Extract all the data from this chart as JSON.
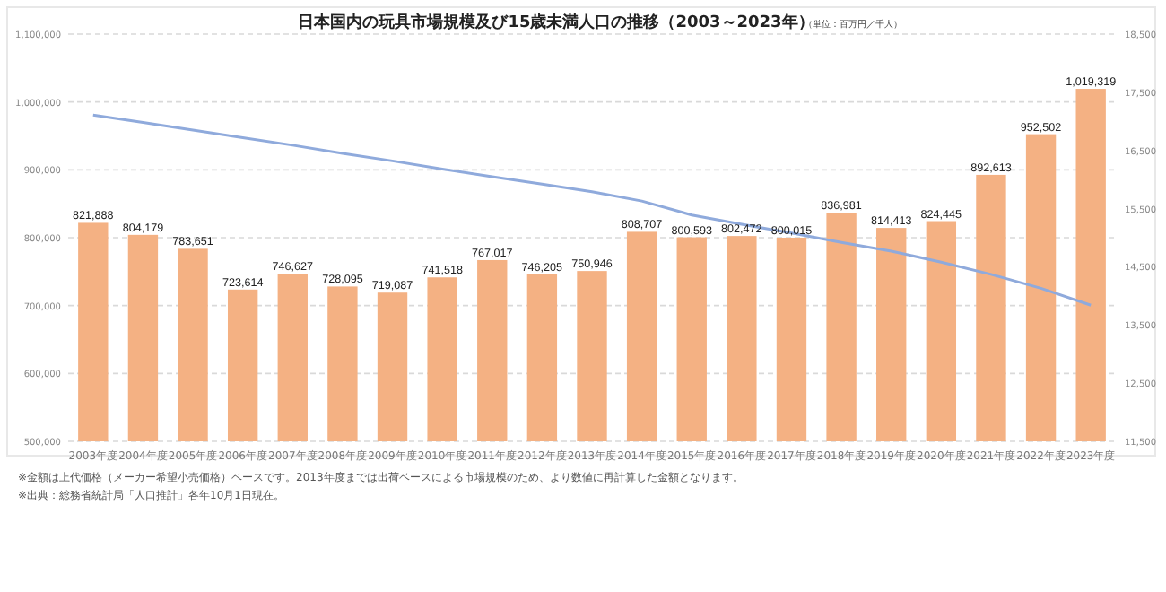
{
  "chart_data": {
    "type": "bar",
    "title": "日本国内の玩具市場規模及び15歳未満人口の推移（2003～2023年）",
    "subtitle": "（単位：百万円／千人）",
    "categories": [
      "2003年度",
      "2004年度",
      "2005年度",
      "2006年度",
      "2007年度",
      "2008年度",
      "2009年度",
      "2010年度",
      "2011年度",
      "2012年度",
      "2013年度",
      "2014年度",
      "2015年度",
      "2016年度",
      "2017年度",
      "2018年度",
      "2019年度",
      "2020年度",
      "2021年度",
      "2022年度",
      "2023年度"
    ],
    "series": [
      {
        "color": "#f4b183",
        "values": [
          821888,
          804179,
          783651,
          723614,
          746627,
          728095,
          719087,
          741518,
          767017,
          746205,
          750946,
          808707,
          800593,
          802472,
          800015,
          836981,
          814413,
          824445,
          892613,
          952502,
          1019319
        ],
        "value_labels": [
          "821,888",
          "804,179",
          "783,651",
          "723,614",
          "746,627",
          "728,095",
          "719,087",
          "741,518",
          "767,017",
          "746,205",
          "750,946",
          "808,707",
          "800,593",
          "802,472",
          "800,015",
          "836,981",
          "814,413",
          "824,445",
          "892,613",
          "952,502",
          "1,019,319"
        ]
      },
      {
        "type": "line",
        "axis": "y2",
        "color": "#8faadc",
        "values": [
          17110,
          16980,
          16850,
          16720,
          16590,
          16450,
          16320,
          16180,
          16050,
          15920,
          15790,
          15630,
          15390,
          15230,
          15080,
          14920,
          14770,
          14580,
          14370,
          14130,
          13840
        ]
      }
    ],
    "ylim": [
      500000,
      1100000
    ],
    "yticks": [
      {
        "value": 500000,
        "label": "500,000"
      },
      {
        "value": 600000,
        "label": "600,000"
      },
      {
        "value": 700000,
        "label": "700,000"
      },
      {
        "value": 800000,
        "label": "800,000"
      },
      {
        "value": 900000,
        "label": "900,000"
      },
      {
        "value": 1000000,
        "label": "1,000,000"
      },
      {
        "value": 1100000,
        "label": "1,100,000"
      }
    ],
    "y2lim": [
      11500,
      18500
    ],
    "y2ticks": [
      {
        "value": 11500,
        "label": "11,500"
      },
      {
        "value": 12500,
        "label": "12,500"
      },
      {
        "value": 13500,
        "label": "13,500"
      },
      {
        "value": 14500,
        "label": "14,500"
      },
      {
        "value": 15500,
        "label": "15,500"
      },
      {
        "value": 16500,
        "label": "16,500"
      },
      {
        "value": 17500,
        "label": "17,500"
      },
      {
        "value": 18500,
        "label": "18,500"
      }
    ],
    "grid": "y",
    "annotations": [
      "※金額は上代価格（メーカー希望小売価格）ベースです。2013年度までは出荷ベースによる市場規模のため、より数値に再計算した金額となります。",
      "※出典：総務省統計局「人口推計」各年10月1日現在。"
    ]
  }
}
